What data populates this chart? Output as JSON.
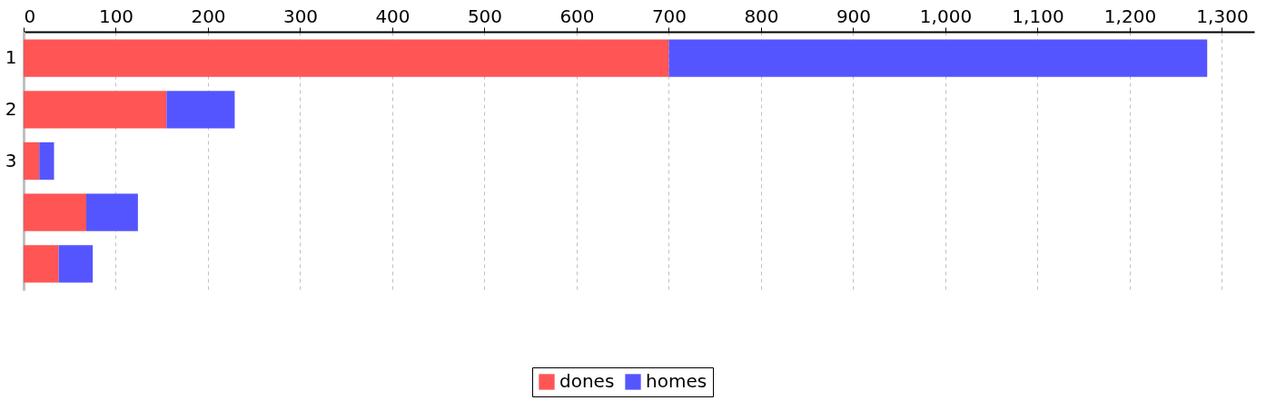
{
  "chart_data": {
    "type": "bar",
    "orientation": "horizontal",
    "stacked": true,
    "categories": [
      "1",
      "2",
      "3",
      null,
      null
    ],
    "series": [
      {
        "name": "dones",
        "color": "#ff5555",
        "values": [
          700,
          155,
          17,
          68,
          38
        ]
      },
      {
        "name": "homes",
        "color": "#5555ff",
        "values": [
          584,
          74,
          16,
          56,
          37
        ]
      }
    ],
    "xlim": [
      0,
      1335
    ],
    "xticks": [
      0,
      100,
      200,
      300,
      400,
      500,
      600,
      700,
      800,
      900,
      {
        "value": 1000,
        "label": "1,000"
      },
      {
        "value": 1100,
        "label": "1,100"
      },
      {
        "value": 1200,
        "label": "1,200"
      },
      {
        "value": 1300,
        "label": "1,300"
      }
    ],
    "grid": "x",
    "legend": "bottom"
  }
}
